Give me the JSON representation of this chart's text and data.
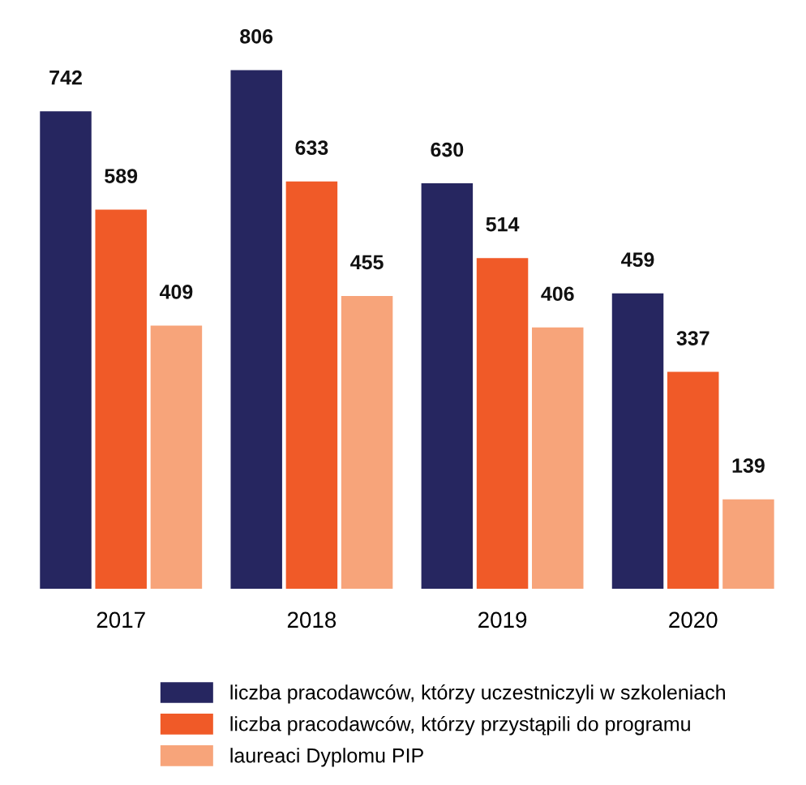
{
  "chart_data": {
    "type": "bar",
    "categories": [
      "2017",
      "2018",
      "2019",
      "2020"
    ],
    "series": [
      {
        "name": "liczba pracodawców, którzy uczestniczyli w szkoleniach",
        "color": "#262660",
        "values": [
          742,
          806,
          630,
          459
        ]
      },
      {
        "name": "liczba pracodawców, którzy przystąpili do programu",
        "color": "#f05a28",
        "values": [
          589,
          633,
          514,
          337
        ]
      },
      {
        "name": "laureaci Dyplomu PIP",
        "color": "#f7a47a",
        "values": [
          409,
          455,
          406,
          139
        ]
      }
    ],
    "data_labels": true,
    "legend": "bottom"
  }
}
